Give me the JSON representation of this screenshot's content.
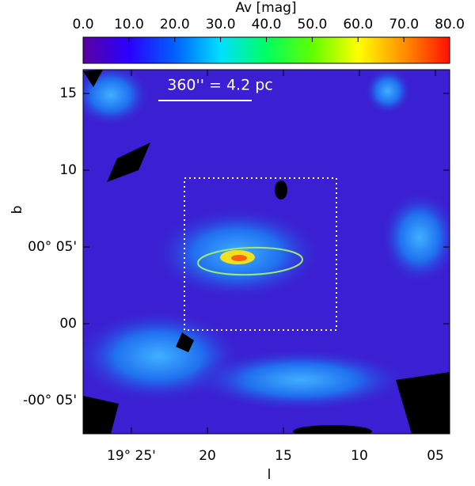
{
  "chart_data": {
    "type": "map",
    "xlabel": "l",
    "ylabel": "b",
    "xlim": [
      19.4696,
      19.0677
    ],
    "xticks": [
      {
        "value": 19.4167,
        "label": "19° 25'"
      },
      {
        "value": 19.3333,
        "label": "20"
      },
      {
        "value": 19.25,
        "label": "15"
      },
      {
        "value": 19.1667,
        "label": "10"
      },
      {
        "value": 19.0833,
        "label": "05"
      }
    ],
    "ylim": [
      -0.1194,
      0.2758
    ],
    "yticks": [
      {
        "value": -0.0833,
        "label": "-00° 05'"
      },
      {
        "value": 0,
        "label": "00"
      },
      {
        "value": 0.0833,
        "label": "00° 05'"
      },
      {
        "value": 0.1667,
        "label": "10"
      },
      {
        "value": 0.25,
        "label": "15"
      }
    ],
    "annotation": "360'' = 4.2 pc",
    "colorbar": {
      "label": "Av [mag]",
      "lim": [
        0,
        80
      ],
      "ticks": [
        {
          "value": 0,
          "label": "0.0"
        },
        {
          "value": 10,
          "label": "10.0"
        },
        {
          "value": 20,
          "label": "20.0"
        },
        {
          "value": 30,
          "label": "30.0"
        },
        {
          "value": 40,
          "label": "40.0"
        },
        {
          "value": 50,
          "label": "50.0"
        },
        {
          "value": 60,
          "label": "60.0"
        },
        {
          "value": 70,
          "label": "70.0"
        },
        {
          "value": 80,
          "label": "80.0"
        }
      ],
      "colors": [
        "#5a00a0",
        "#2a00ff",
        "#0060ff",
        "#00e0ff",
        "#00ff60",
        "#60ff00",
        "#ffff00",
        "#ff9000",
        "#ff1000"
      ]
    }
  }
}
